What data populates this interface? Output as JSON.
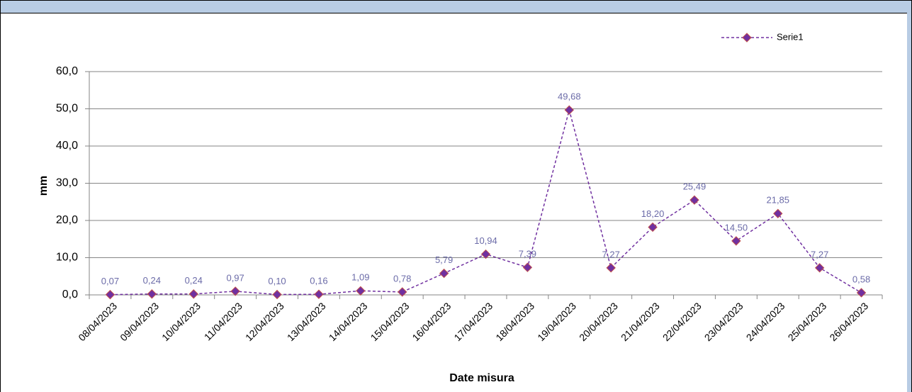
{
  "chart_data": {
    "type": "line",
    "xlabel": "Date misura",
    "ylabel": "mm",
    "categories": [
      "08/04/2023",
      "09/04/2023",
      "10/04/2023",
      "11/04/2023",
      "12/04/2023",
      "13/04/2023",
      "14/04/2023",
      "15/04/2023",
      "16/04/2023",
      "17/04/2023",
      "18/04/2023",
      "19/04/2023",
      "20/04/2023",
      "21/04/2023",
      "22/04/2023",
      "23/04/2023",
      "24/04/2023",
      "25/04/2023",
      "26/04/2023"
    ],
    "series": [
      {
        "name": "Serie1",
        "color": "#7030a0",
        "values": [
          0.07,
          0.24,
          0.24,
          0.97,
          0.1,
          0.16,
          1.09,
          0.78,
          5.79,
          10.94,
          7.39,
          49.68,
          7.27,
          18.2,
          25.49,
          14.5,
          21.85,
          7.27,
          0.58
        ],
        "value_labels": [
          "0,07",
          "0,24",
          "0,24",
          "0,97",
          "0,10",
          "0,16",
          "1,09",
          "0,78",
          "5,79",
          "10,94",
          "7,39",
          "49,68",
          "7,27",
          "18,20",
          "25,49",
          "14,50",
          "21,85",
          "7,27",
          "0,58"
        ]
      }
    ],
    "ylim": [
      0,
      60
    ],
    "yticks": [
      {
        "value": 0,
        "label": "0,0"
      },
      {
        "value": 10,
        "label": "10,0"
      },
      {
        "value": 20,
        "label": "20,0"
      },
      {
        "value": 30,
        "label": "30,0"
      },
      {
        "value": 40,
        "label": "40,0"
      },
      {
        "value": 50,
        "label": "50,0"
      },
      {
        "value": 60,
        "label": "60,0"
      }
    ],
    "grid": true,
    "legend": "top-right"
  }
}
